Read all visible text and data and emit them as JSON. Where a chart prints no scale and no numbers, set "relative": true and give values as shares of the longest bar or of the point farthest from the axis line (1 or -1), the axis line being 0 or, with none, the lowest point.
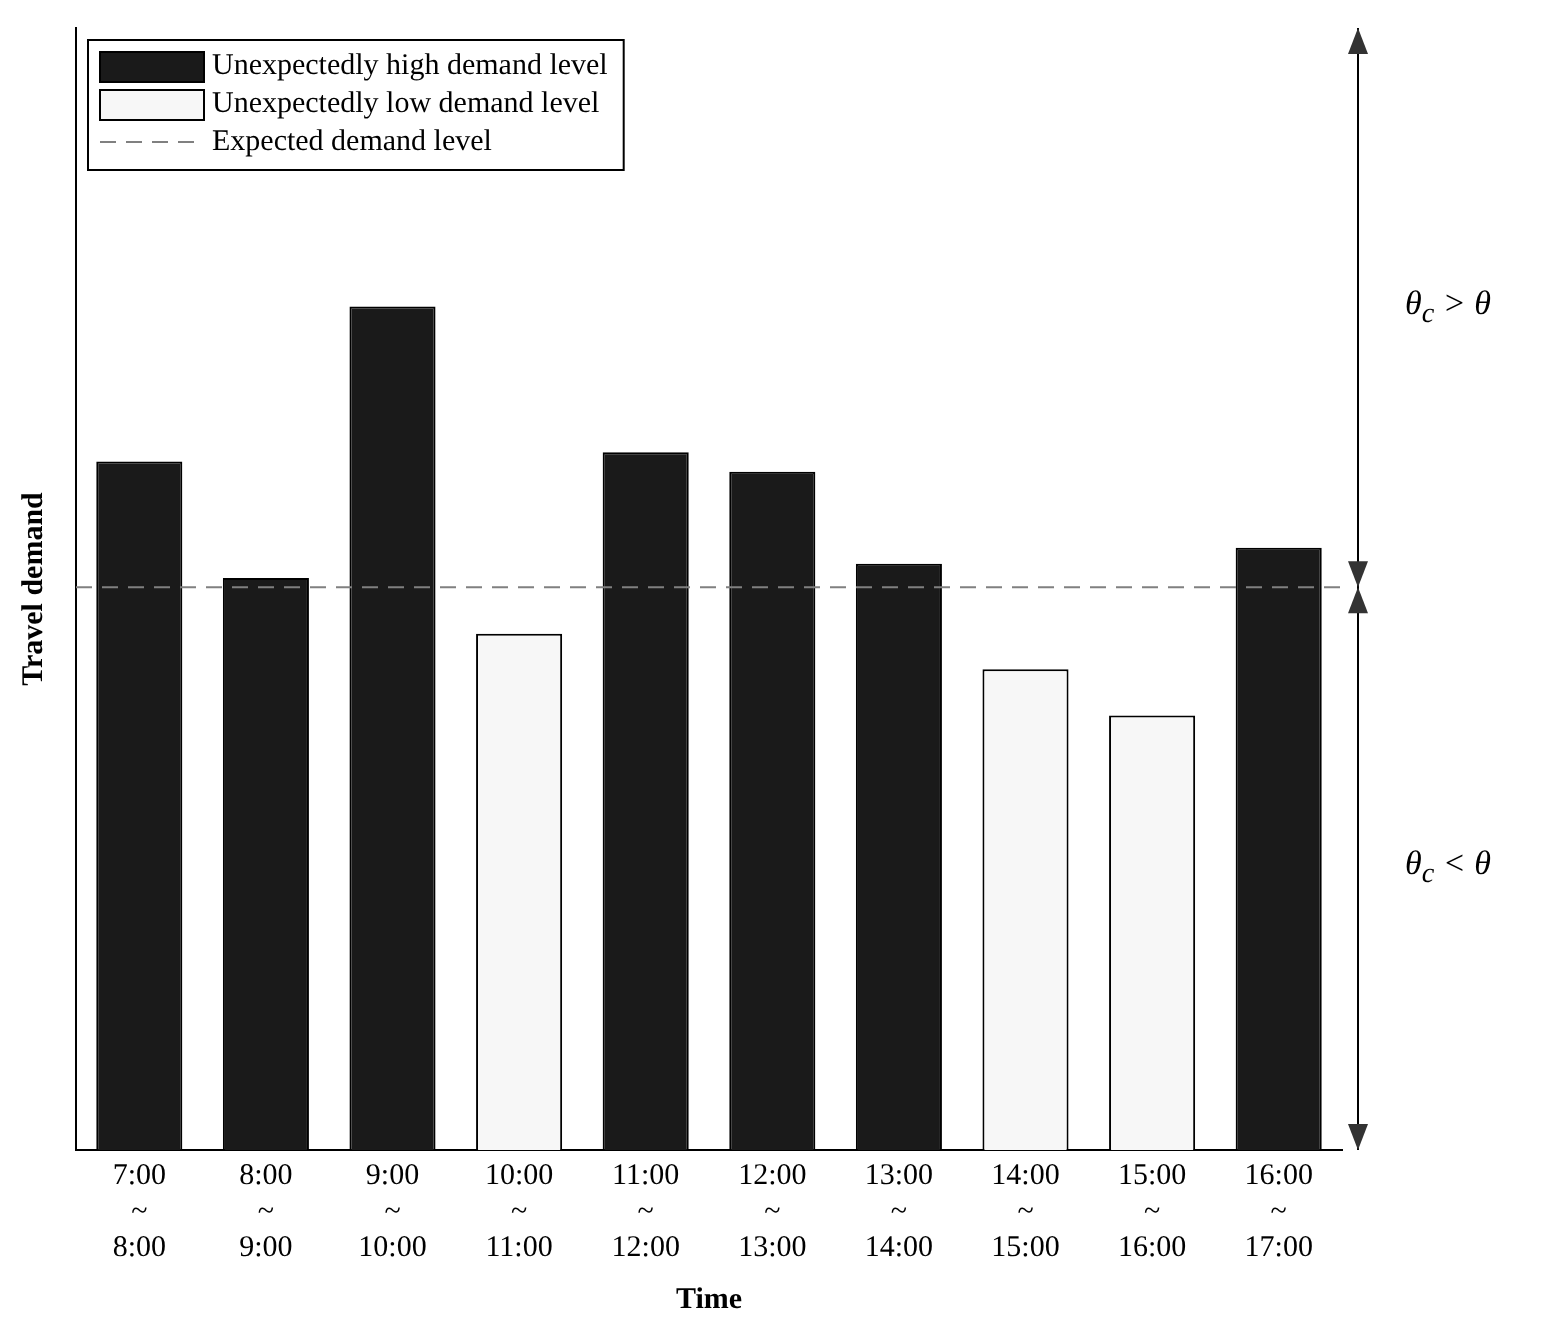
{
  "chart_data": {
    "type": "bar",
    "relative": true,
    "xlabel": "Time",
    "ylabel": "Travel demand",
    "categories": [
      "7:00 ~ 8:00",
      "8:00 ~ 9:00",
      "9:00 ~ 10:00",
      "10:00 ~ 11:00",
      "11:00 ~ 12:00",
      "12:00 ~ 13:00",
      "13:00 ~ 14:00",
      "14:00 ~ 15:00",
      "15:00 ~ 16:00",
      "16:00 ~ 17:00"
    ],
    "series": [
      {
        "name": "Unexpectedly high demand level",
        "color": "#1a1a1a",
        "values": [
          0.816,
          0.678,
          1,
          null,
          0.827,
          0.804,
          0.695,
          null,
          null,
          0.714
        ]
      },
      {
        "name": "Unexpectedly low demand level",
        "color": "#f7f7f7",
        "values": [
          null,
          null,
          null,
          0.612,
          null,
          null,
          null,
          0.57,
          0.515,
          null
        ]
      }
    ],
    "ref_lines": [
      {
        "axis": "y",
        "value": 0.667,
        "label": "Expected demand level",
        "line_style": "dashed",
        "color": "#808080"
      }
    ],
    "annotations": [
      "θ$_{c}$ > θ",
      "θ$_{c}$ < θ"
    ],
    "legend": "top left",
    "grid": false
  }
}
